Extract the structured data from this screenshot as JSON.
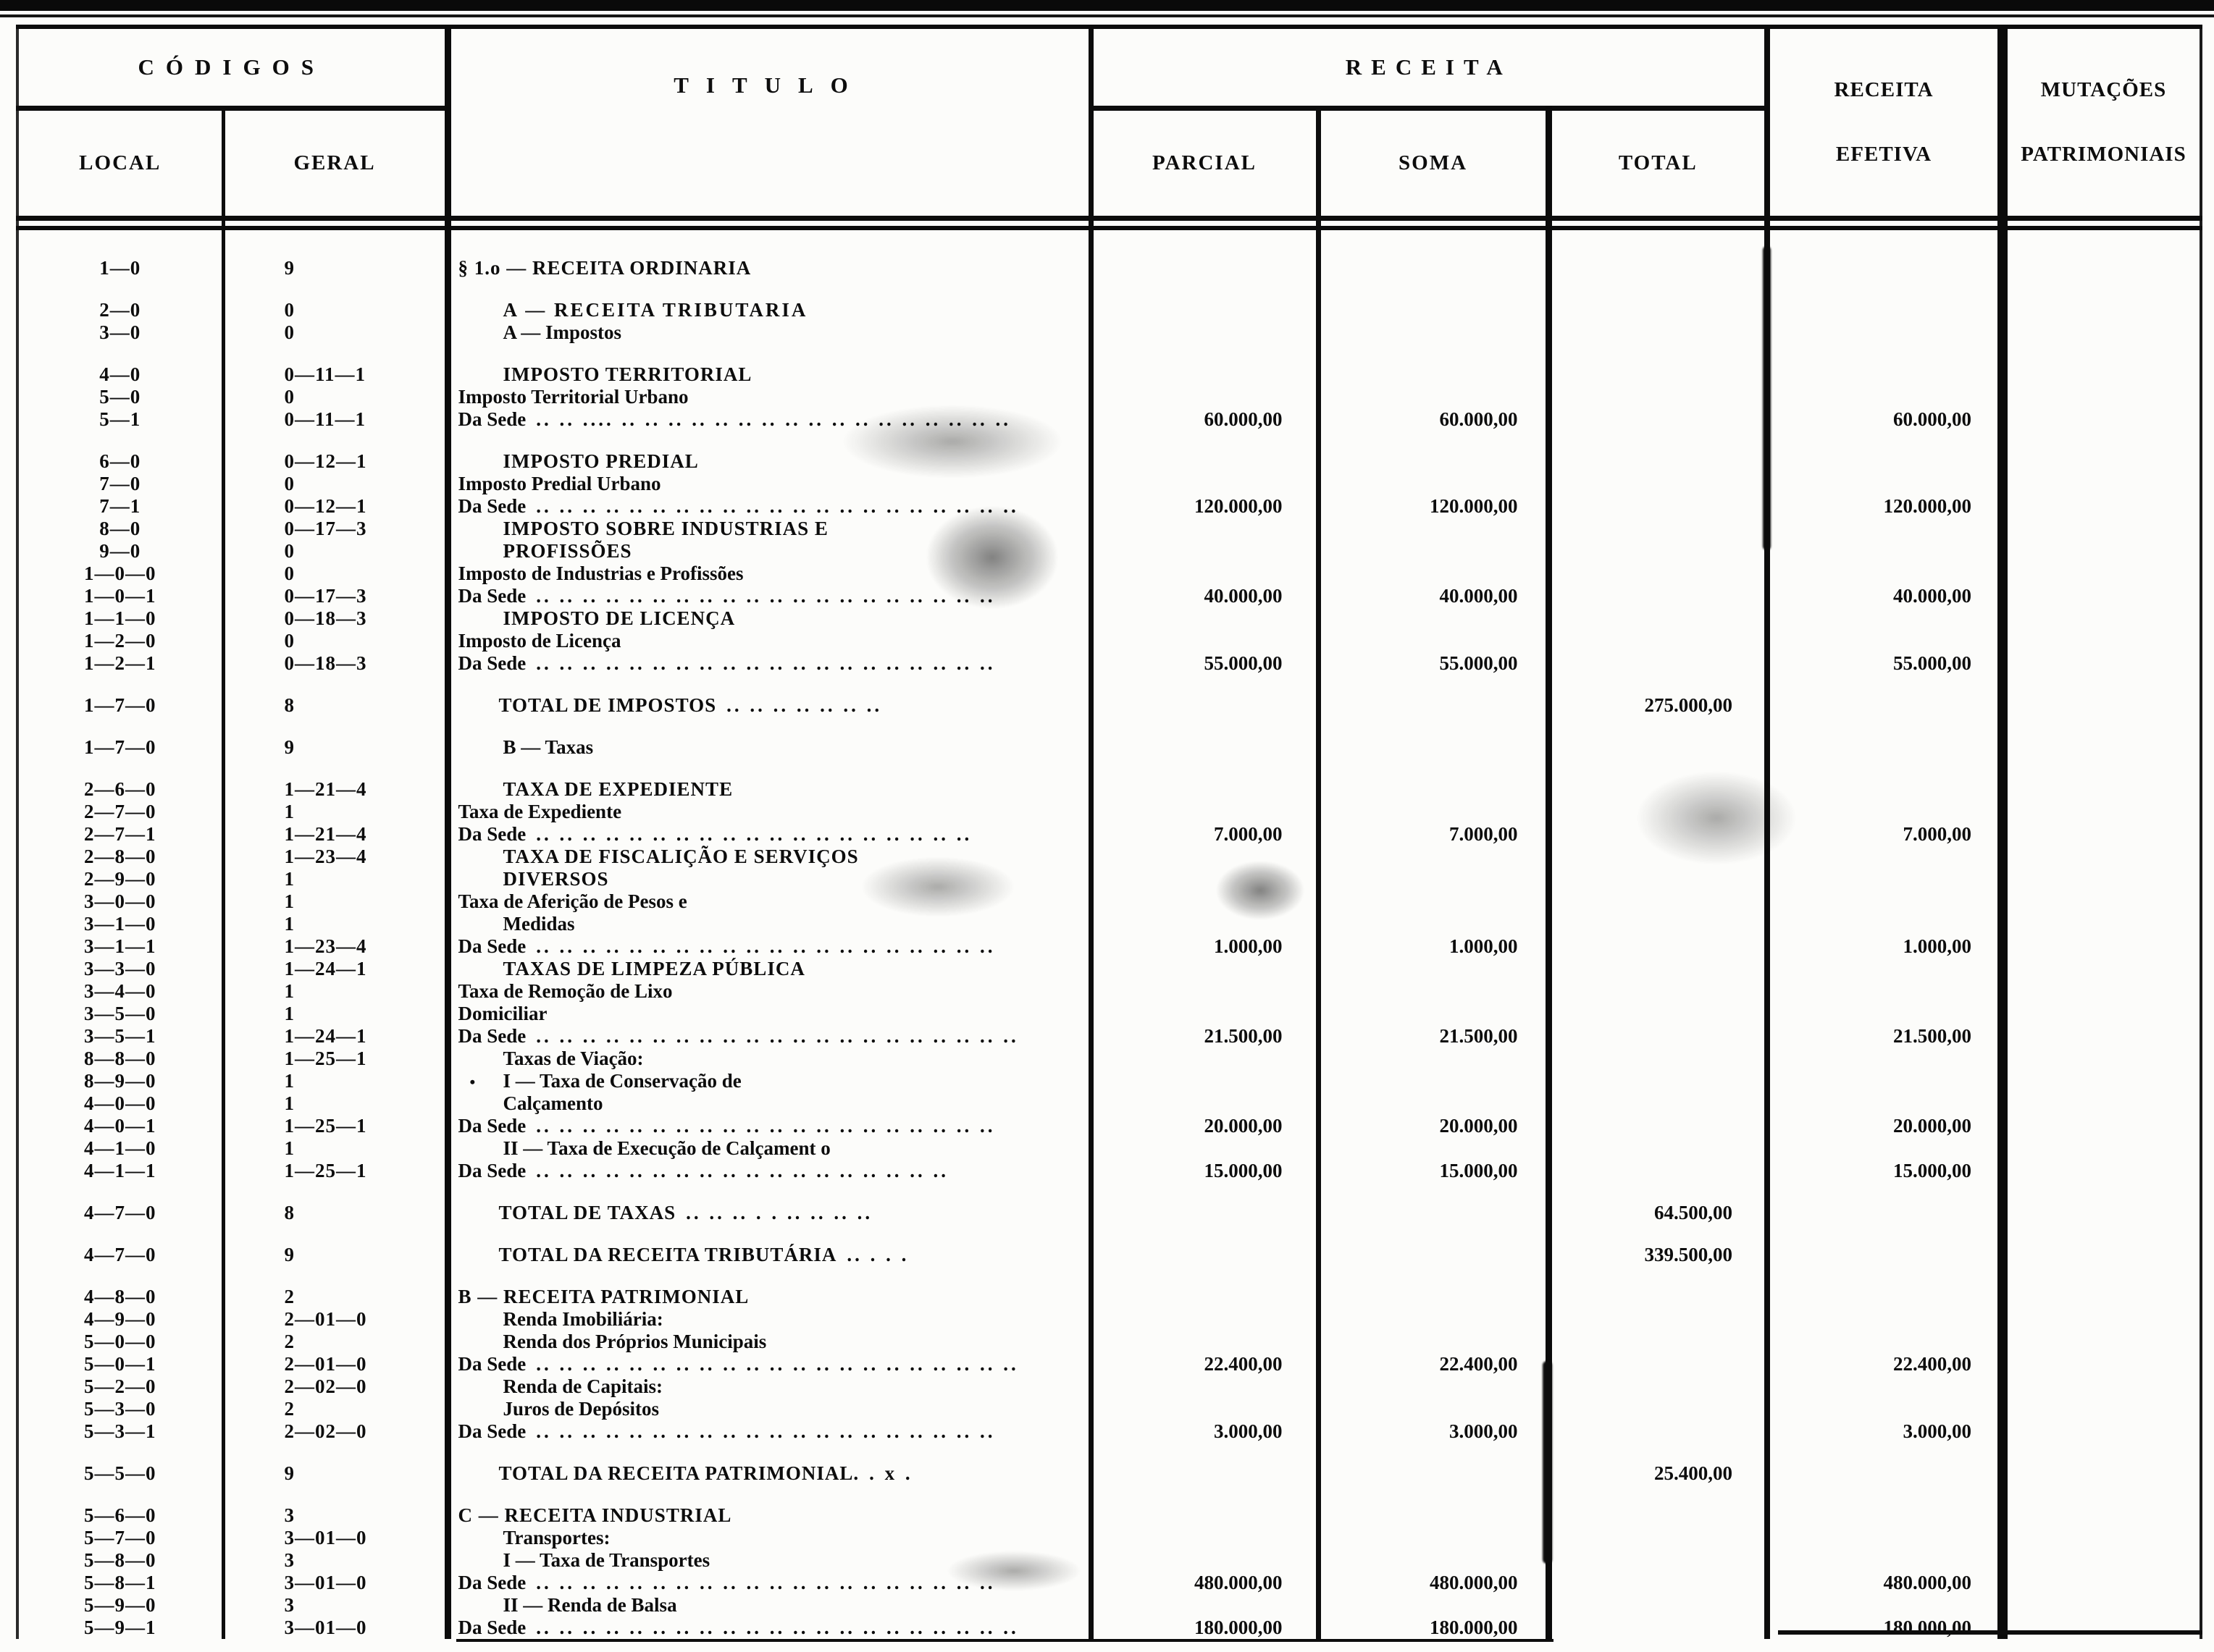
{
  "header": {
    "codigos": "CÓDIGOS",
    "local": "LOCAL",
    "geral": "GERAL",
    "titulo": "TITULO",
    "receita": "RECEITA",
    "parcial": "PARCIAL",
    "soma": "SOMA",
    "total": "TOTAL",
    "receita_efetiva_1": "RECEITA",
    "receita_efetiva_2": "EFETIVA",
    "mutacoes_1": "MUTAÇÕES",
    "mutacoes_2": "PATRIMONIAIS"
  },
  "rows": [
    {
      "local": "1—0",
      "geral": "9",
      "t": "§ 1.o — RECEITA ORDINARIA",
      "cls": "sec"
    },
    {
      "gap": 1,
      "local": "2—0",
      "geral": "0",
      "t": "A — RECEITA TRIBUTARIA",
      "cls": "grp"
    },
    {
      "local": "3—0",
      "geral": "0",
      "t": "A — Impostos",
      "cls": "sub"
    },
    {
      "gap": 1,
      "local": "4—0",
      "geral": "0—11—1",
      "t": "IMPOSTO TERRITORIAL",
      "cls": "caps"
    },
    {
      "local": "5—0",
      "geral": "0",
      "t": "Imposto Territorial Urbano",
      "cls": "plain"
    },
    {
      "local": "5—1",
      "geral": "0—11—1",
      "t": "Da Sede",
      "cls": "das",
      "dots": ".. ..  .... .. .. .. .. .. .. .. .. .. .. .. .. .. .. .. .. ..",
      "p": "60.000,00",
      "s": "60.000,00",
      "e": "60.000,00"
    },
    {
      "gap": 1,
      "local": "6—0",
      "geral": "0—12—1",
      "t": "IMPOSTO PREDIAL",
      "cls": "caps"
    },
    {
      "local": "7—0",
      "geral": "0",
      "t": "Imposto Predial Urbano",
      "cls": "plain"
    },
    {
      "local": "7—1",
      "geral": "0—12—1",
      "t": "Da Sede",
      "cls": "das",
      "dots": ".. .. .. .. .. .. .. .. .. .. .. .. .. .. .. .. .. .. .. .. ..",
      "p": "120.000,00",
      "s": "120.000,00",
      "e": "120.000,00"
    },
    {
      "local": "8—0",
      "geral": "0—17—3",
      "t": "IMPOSTO SOBRE INDUSTRIAS E",
      "cls": "caps"
    },
    {
      "local": "9—0",
      "geral": "0",
      "t": "PROFISSÕES",
      "cls": "capsc"
    },
    {
      "local": "1—0—0",
      "geral": "0",
      "t": "Imposto de Industrias e Profissões",
      "cls": "plain"
    },
    {
      "local": "1—0—1",
      "geral": "0—17—3",
      "t": "Da Sede",
      "cls": "das",
      "dots": ".. .. .. .. .. .. .. .. .. .. .. .. .. .. .. .. .. .. .. ..",
      "p": "40.000,00",
      "s": "40.000,00",
      "e": "40.000,00"
    },
    {
      "local": "1—1—0",
      "geral": "0—18—3",
      "t": "IMPOSTO DE LICENÇA",
      "cls": "caps"
    },
    {
      "local": "1—2—0",
      "geral": "0",
      "t": "Imposto de Licença",
      "cls": "plain"
    },
    {
      "local": "1—2—1",
      "geral": "0—18—3",
      "t": "Da Sede",
      "cls": "das",
      "dots": ".. .. .. .. .. .. .. .. .. .. .. .. .. .. .. .. .. .. .. ..",
      "p": "55.000,00",
      "s": "55.000,00",
      "e": "55.000,00"
    },
    {
      "gap": 1,
      "local": "1—7—0",
      "geral": "8",
      "t": "TOTAL DE IMPOSTOS",
      "cls": "tot",
      "dots": ".. .. .. .. .. .. ..",
      "tl": "275.000,00"
    },
    {
      "gap": 1,
      "local": "1—7—0",
      "geral": "9",
      "t": "B — Taxas",
      "cls": "sub"
    },
    {
      "gap": 1,
      "local": "2—6—0",
      "geral": "1—21—4",
      "t": "TAXA DE EXPEDIENTE",
      "cls": "caps"
    },
    {
      "local": "2—7—0",
      "geral": "1",
      "t": "Taxa de Expediente",
      "cls": "plain"
    },
    {
      "local": "2—7—1",
      "geral": "1—21—4",
      "t": "Da Sede",
      "cls": "das",
      "dots": ".. .. .. .. ..  .. .. .. .. .. .. .. .. .. .. .. .. .. ..",
      "p": "7.000,00",
      "s": "7.000,00",
      "e": "7.000,00"
    },
    {
      "local": "2—8—0",
      "geral": "1—23—4",
      "t": "TAXA DE FISCALIÇÃO  E SERVIÇOS",
      "cls": "caps"
    },
    {
      "local": "2—9—0",
      "geral": "1",
      "t": "DIVERSOS",
      "cls": "capsc"
    },
    {
      "local": "3—0—0",
      "geral": "1",
      "t": "Taxa de Aferição de Pesos e",
      "cls": "plain"
    },
    {
      "local": "3—1—0",
      "geral": "1",
      "t": "Medidas",
      "cls": "ind"
    },
    {
      "local": "3—1—1",
      "geral": "1—23—4",
      "t": "Da Sede",
      "cls": "das",
      "dots": ".. .. .. .. .. .. .. .. .. .. .. .. .. .. .. .. .. .. .. ..",
      "p": "1.000,00",
      "s": "1.000,00",
      "e": "1.000,00"
    },
    {
      "local": "3—3—0",
      "geral": "1—24—1",
      "t": "TAXAS DE LIMPEZA PÚBLICA",
      "cls": "caps"
    },
    {
      "local": "3—4—0",
      "geral": "1",
      "t": "Taxa de Remoção de Lixo",
      "cls": "plain"
    },
    {
      "local": "3—5—0",
      "geral": "1",
      "t": "Domiciliar",
      "cls": "plain"
    },
    {
      "local": "3—5—1",
      "geral": "1—24—1",
      "t": "Da Sede",
      "cls": "das",
      "dots": ".. .. .. .. .. .. .. .. .. .. .. .. .. .. .. .. .. .. .. .. ..",
      "p": "21.500,00",
      "s": "21.500,00",
      "e": "21.500,00"
    },
    {
      "local": "8—8—0",
      "geral": "1—25—1",
      "t": "Taxas de Viação:",
      "cls": "sub"
    },
    {
      "local": "8—9—0",
      "geral": "1",
      "t": "I — Taxa de Conservação de",
      "cls": "indb",
      "bullet": true
    },
    {
      "local": "4—0—0",
      "geral": "1",
      "t": "Calçamento",
      "cls": "ind"
    },
    {
      "local": "4—0—1",
      "geral": "1—25—1",
      "t": "Da Sede",
      "cls": "das",
      "dots": ".. .. .. .. .. .. .. .. .. .. .. .. .. .. .. .. .. .. .. ..",
      "p": "20.000,00",
      "s": "20.000,00",
      "e": "20.000,00"
    },
    {
      "local": "4—1—0",
      "geral": "1",
      "t": "II — Taxa de Execução de Calçament o",
      "cls": "ind"
    },
    {
      "local": "4—1—1",
      "geral": "1—25—1",
      "t": "Da Sede",
      "cls": "das",
      "dots": ".. .. .. .. .. .. .. .. .. .. .. .. .. .. .. .. .. ..",
      "p": "15.000,00",
      "s": "15.000,00",
      "e": "15.000,00"
    },
    {
      "gap": 1,
      "local": "4—7—0",
      "geral": "8",
      "t": "TOTAL DE TAXAS",
      "cls": "tot",
      "dots": ".. .. .. . . .. .. .. ..",
      "tl": "64.500,00"
    },
    {
      "gap": 1,
      "local": "4—7—0",
      "geral": "9",
      "t": "TOTAL DA RECEITA TRIBUTÁRIA",
      "cls": "tot",
      "dots": ".. . . .",
      "tl": "339.500,00"
    },
    {
      "gap": 1,
      "local": "4—8—0",
      "geral": "2",
      "t": "B — RECEITA PATRIMONIAL",
      "cls": "secb"
    },
    {
      "local": "4—9—0",
      "geral": "2—01—0",
      "t": "Renda Imobiliária:",
      "cls": "sub"
    },
    {
      "local": "5—0—0",
      "geral": "2",
      "t": "Renda dos Próprios Municipais",
      "cls": "ind"
    },
    {
      "local": "5—0—1",
      "geral": "2—01—0",
      "t": "Da Sede",
      "cls": "das",
      "dots": ".. .. .. .. .. .. .. .. .. .. .. .. .. .. .. .. .. .. .. .. ..",
      "p": "22.400,00",
      "s": "22.400,00",
      "e": "22.400,00"
    },
    {
      "local": "5—2—0",
      "geral": "2—02—0",
      "t": "Renda de Capitais:",
      "cls": "sub"
    },
    {
      "local": "5—3—0",
      "geral": "2",
      "t": "Juros de Depósitos",
      "cls": "ind"
    },
    {
      "local": "5—3—1",
      "geral": "2—02—0",
      "t": "Da Sede",
      "cls": "das",
      "dots": ".. .. .. .. .. .. .. .. .. .. .. .. .. .. .. .. .. .. .. ..",
      "p": "3.000,00",
      "s": "3.000,00",
      "e": "3.000,00"
    },
    {
      "gap": 1,
      "local": "5—5—0",
      "geral": "9",
      "t": "TOTAL DA RECEITA PATRIMONIAL.",
      "cls": "tot",
      "dots": ". x .",
      "tl": "25.400,00"
    },
    {
      "gap": 1,
      "local": "5—6—0",
      "geral": "3",
      "t": "C — RECEITA INDUSTRIAL",
      "cls": "secb"
    },
    {
      "local": "5—7—0",
      "geral": "3—01—0",
      "t": "Transportes:",
      "cls": "sub"
    },
    {
      "local": "5—8—0",
      "geral": "3",
      "t": "I — Taxa de Transportes",
      "cls": "ind"
    },
    {
      "local": "5—8—1",
      "geral": "3—01—0",
      "t": "Da Sede",
      "cls": "das",
      "dots": ".. .. .. .. .. .. .. .. .. .. .. .. .. .. .. .. .. .. .. ..",
      "p": "480.000,00",
      "s": "480.000,00",
      "e": "480.000,00"
    },
    {
      "local": "5—9—0",
      "geral": "3",
      "t": "II — Renda de Balsa",
      "cls": "ind"
    },
    {
      "local": "5—9—1",
      "geral": "3—01—0",
      "t": "Da Sede",
      "cls": "das",
      "dots": ".. .. .. .. .. .. .. .. .. .. .. .. .. .. .. .. .. .. .. .. ..",
      "p": "180.000,00",
      "s": "180.000,00",
      "e": "180.000,00"
    }
  ]
}
